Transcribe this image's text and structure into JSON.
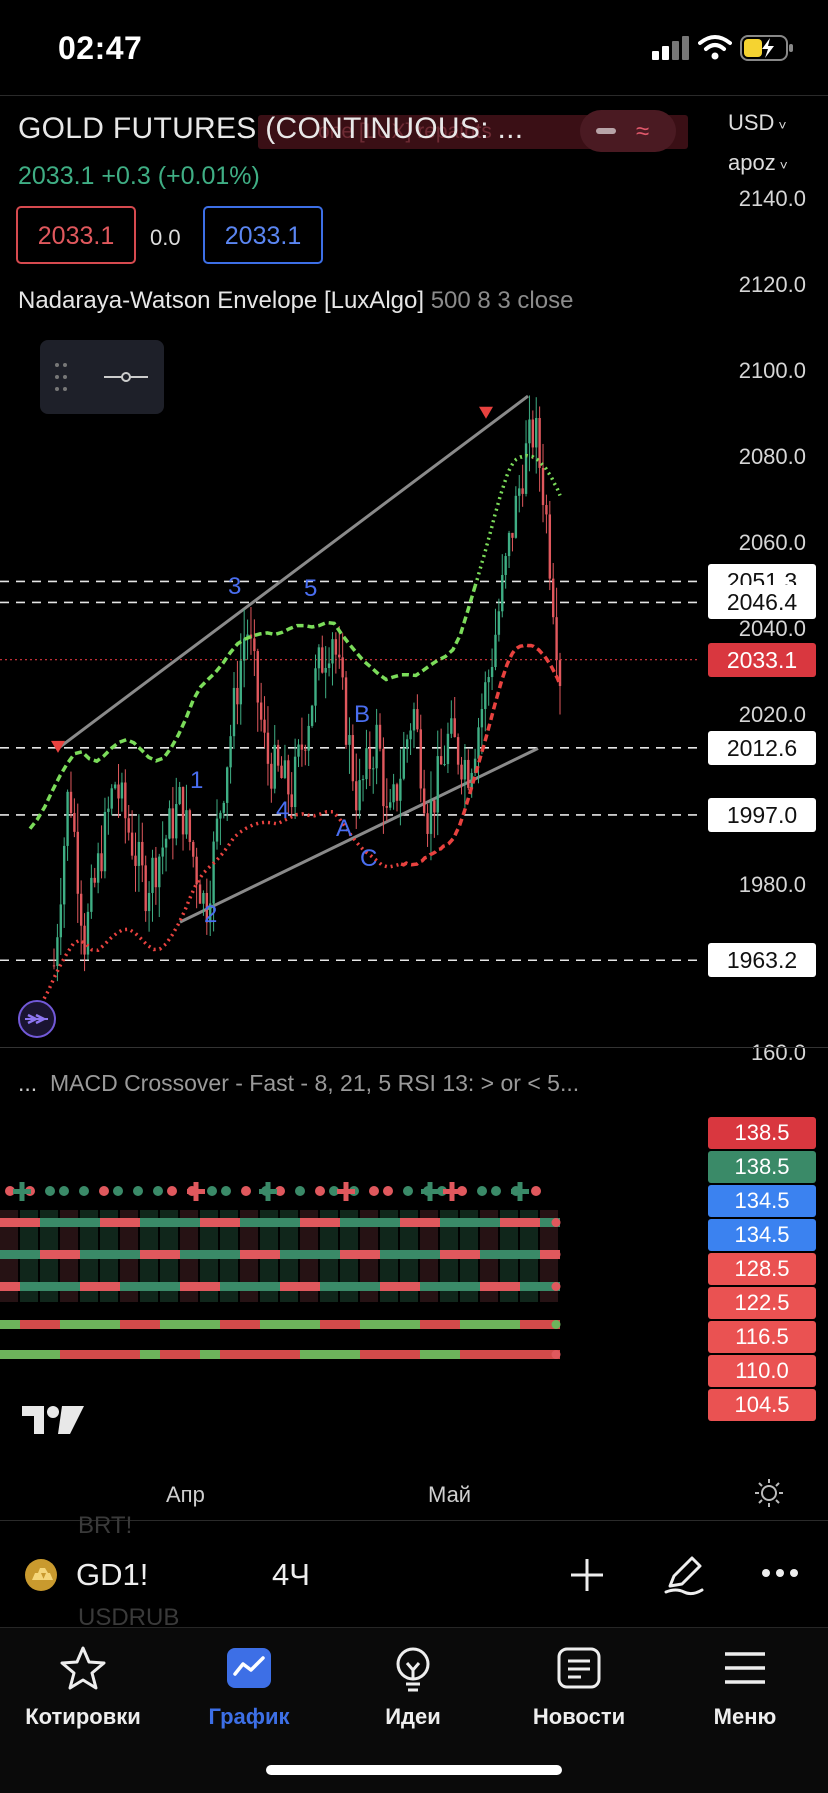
{
  "status_bar": {
    "time": "02:47"
  },
  "header": {
    "symbol_title": "GOLD FUTURES (CONTINUOUS: ...",
    "ghost_label": "one [LUX] repaints",
    "price": "2033.1",
    "change": "+0.3 (+0.01%)",
    "sell_price": "2033.1",
    "spread": "0.0",
    "buy_price": "2033.1",
    "currency": "USD",
    "account": "apoz",
    "indicator_name": "Nadaraya-Watson Envelope [LuxAlgo]",
    "indicator_params": "500 8 3 close"
  },
  "price_axis": {
    "labels": [
      "2140.0",
      "2120.0",
      "2100.0",
      "2080.0",
      "2060.0",
      "2040.0",
      "2020.0",
      "1980.0",
      "160.0"
    ],
    "current_price_tag": "2033.1",
    "level_tags": [
      "2051.3",
      "2046.4",
      "2012.6",
      "1997.0",
      "1963.2"
    ]
  },
  "chart_data": {
    "type": "candlestick",
    "symbol": "GD1!",
    "interval": "4Ч",
    "y_range": [
      1955,
      2145
    ],
    "horizontal_levels": [
      2051.3,
      2046.4,
      2012.6,
      1997.0,
      1963.2
    ],
    "current_price": 2033.1,
    "wave_labels": [
      "1",
      "2",
      "3",
      "4",
      "5",
      "A",
      "B",
      "C"
    ],
    "channel": {
      "upper": [
        [
          0,
          2012
        ],
        [
          0.95,
          2093
        ]
      ],
      "lower": [
        [
          0.26,
          1973
        ],
        [
          0.95,
          2012
        ]
      ]
    },
    "peaks_marked": [
      2010.5,
      2088.2
    ],
    "x_labels": [
      "Апр",
      "Май"
    ]
  },
  "macd_pane": {
    "label": "MACD Crossover - Fast - 8, 21, 5 RSI 13: > or < 5...",
    "tags": [
      {
        "value": "138.5",
        "color": "#d9373f"
      },
      {
        "value": "138.5",
        "color": "#3a8a68"
      },
      {
        "value": "134.5",
        "color": "#3b82f0"
      },
      {
        "value": "134.5",
        "color": "#3b82f0"
      },
      {
        "value": "128.5",
        "color": "#ea5252"
      },
      {
        "value": "122.5",
        "color": "#ea5252"
      },
      {
        "value": "116.5",
        "color": "#ea5252"
      },
      {
        "value": "110.0",
        "color": "#ea5252"
      },
      {
        "value": "104.5",
        "color": "#ea5252"
      }
    ]
  },
  "x_axis": {
    "labels": [
      "Апр",
      "Май"
    ]
  },
  "symbol_bar": {
    "ticker": "GD1!",
    "interval": "4Ч",
    "ghost_above": "BRT!",
    "ghost_below": "USDRUB_"
  },
  "nav": {
    "items": [
      {
        "label": "Котировки",
        "icon": "star-icon"
      },
      {
        "label": "График",
        "icon": "chart-icon",
        "active": true
      },
      {
        "label": "Идеи",
        "icon": "lightbulb-icon"
      },
      {
        "label": "Новости",
        "icon": "news-icon"
      },
      {
        "label": "Меню",
        "icon": "menu-icon"
      }
    ]
  },
  "colors": {
    "accent": "#3d6fe6",
    "up": "#3fae84",
    "down": "#e0585d",
    "envelope_up": "#7bdc5a",
    "envelope_down": "#e8423f"
  }
}
